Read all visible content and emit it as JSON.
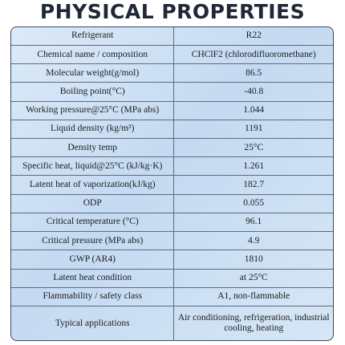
{
  "title": "PHYSICAL PROPERTIES",
  "table": {
    "rows": [
      [
        "Refrigerant",
        "R22"
      ],
      [
        "Chemical name / composition",
        "CHClF2 (chlorodifluoromethane)"
      ],
      [
        "Molecular weight(g/mol)",
        "86.5"
      ],
      [
        "Boiling point(°C)",
        "-40.8"
      ],
      [
        "Working pressure@25°C (MPa abs)",
        "1.044"
      ],
      [
        "Liquid density (kg/m³)",
        "1191"
      ],
      [
        "Density temp",
        "25°C"
      ],
      [
        "Specific heat, liquid@25°C (kJ/kg·K)",
        "1.261"
      ],
      [
        "Latent heat of vaporization(kJ/kg)",
        "182.7"
      ],
      [
        "ODP",
        "0.055"
      ],
      [
        "Critical temperature (°C)",
        "96.1"
      ],
      [
        "Critical pressure (MPa abs)",
        "4.9"
      ],
      [
        "GWP (AR4)",
        "1810"
      ],
      [
        "Latent heat condition",
        "at 25°C"
      ],
      [
        "Flammability / safety class",
        "A1, non-flammable"
      ],
      [
        "Typical applications",
        "Air conditioning, refrigeration, industrial cooling, heating"
      ]
    ]
  }
}
